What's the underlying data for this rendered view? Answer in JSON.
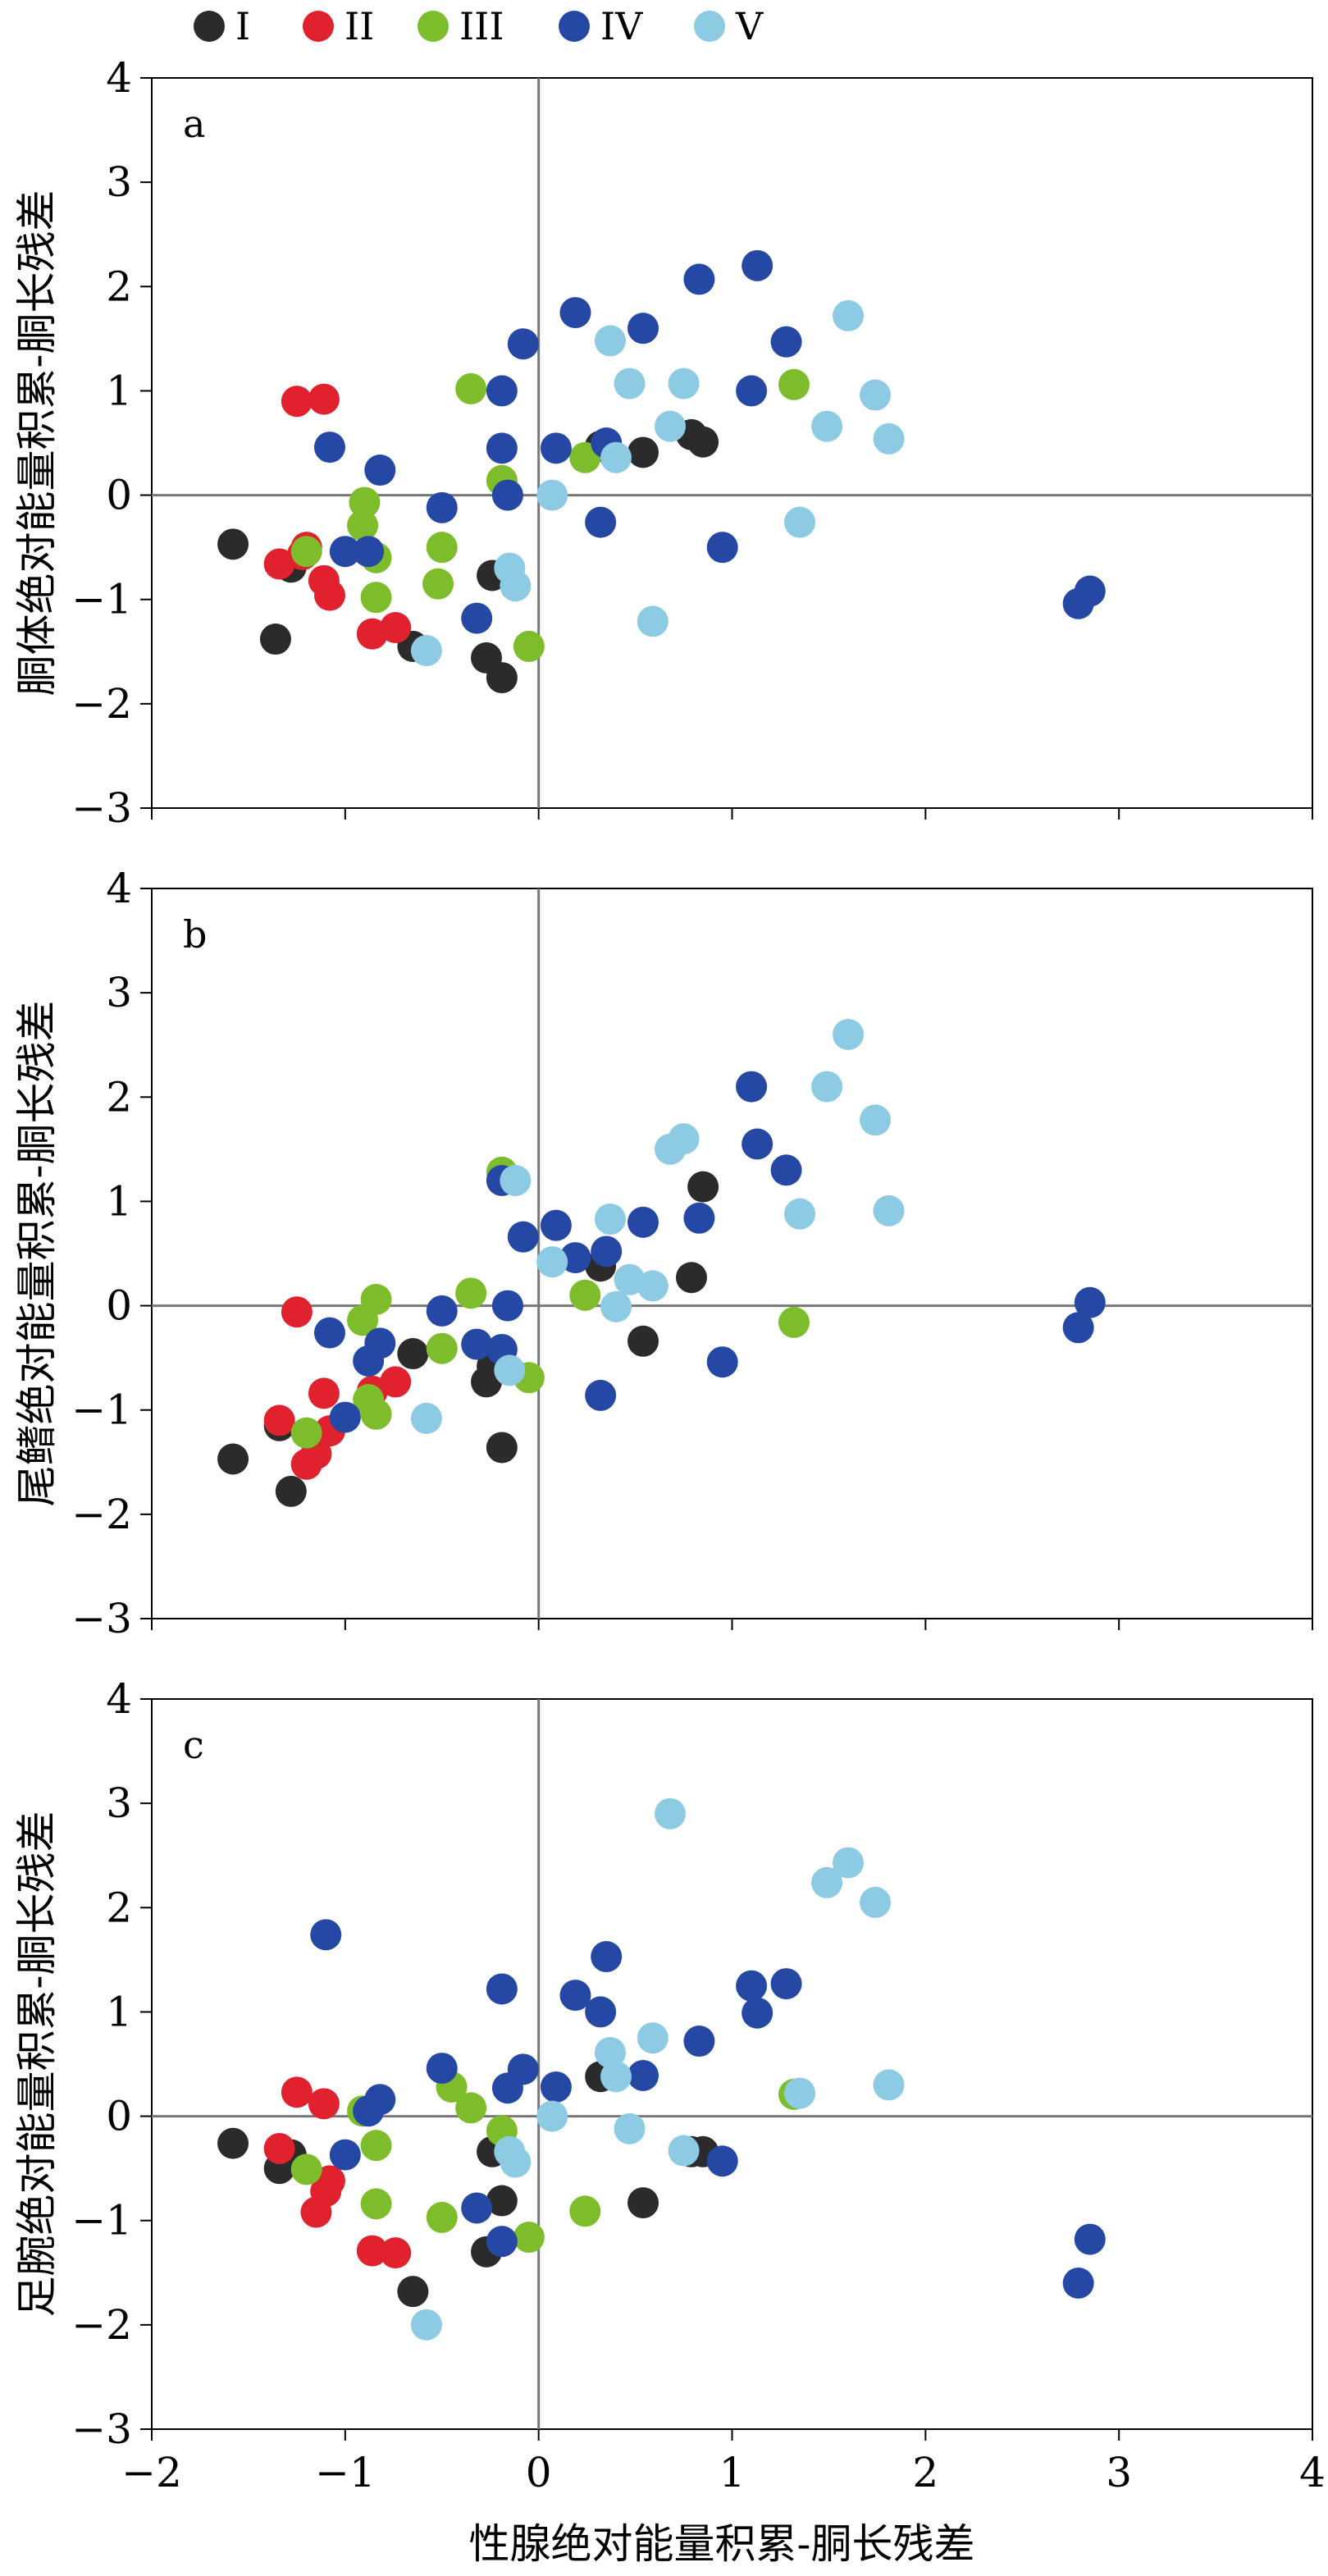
{
  "legend": [
    {
      "label": "I",
      "color": "#2b2b2b"
    },
    {
      "label": "II",
      "color": "#e0212e"
    },
    {
      "label": "III",
      "color": "#7dbd2b"
    },
    {
      "label": "IV",
      "color": "#2548a4"
    },
    {
      "label": "V",
      "color": "#8ccbe3"
    }
  ],
  "x_axis": {
    "label": "性腺绝对能量积累-胴长残差",
    "ticks": [
      "−2",
      "−1",
      "0",
      "1",
      "2",
      "3",
      "4"
    ]
  },
  "y_ticks": [
    "4",
    "3",
    "2",
    "1",
    "0",
    "−1",
    "−2",
    "−3"
  ],
  "chart_data": [
    {
      "type": "scatter",
      "panel_label": "a",
      "ylabel": "胴体绝对能量积累-胴长残差",
      "xlim": [
        -2,
        4
      ],
      "ylim": [
        -3,
        4
      ],
      "grid": false,
      "legend_position": "top",
      "series": [
        {
          "name": "I",
          "color": "#2b2b2b",
          "points": [
            [
              -1.58,
              -0.47
            ],
            [
              -1.36,
              -1.38
            ],
            [
              -1.28,
              -0.69
            ],
            [
              -0.65,
              -1.45
            ],
            [
              -0.27,
              -1.56
            ],
            [
              -0.24,
              -0.77
            ],
            [
              -0.19,
              -1.75
            ],
            [
              0.32,
              0.47
            ],
            [
              0.54,
              0.41
            ],
            [
              0.79,
              0.58
            ],
            [
              0.85,
              0.51
            ]
          ]
        },
        {
          "name": "II",
          "color": "#e0212e",
          "points": [
            [
              -1.25,
              0.9
            ],
            [
              -1.11,
              0.92
            ],
            [
              -1.34,
              -0.66
            ],
            [
              -1.2,
              -0.5
            ],
            [
              -1.22,
              -0.57
            ],
            [
              -1.11,
              -0.82
            ],
            [
              -1.08,
              -0.96
            ],
            [
              -0.86,
              -1.33
            ],
            [
              -0.74,
              -1.27
            ]
          ]
        },
        {
          "name": "III",
          "color": "#7dbd2b",
          "points": [
            [
              -1.2,
              -0.54
            ],
            [
              -0.9,
              -0.07
            ],
            [
              -0.91,
              -0.29
            ],
            [
              -0.84,
              -0.6
            ],
            [
              -0.84,
              -0.98
            ],
            [
              -0.5,
              -0.5
            ],
            [
              -0.52,
              -0.85
            ],
            [
              -0.35,
              1.02
            ],
            [
              -0.19,
              0.14
            ],
            [
              -0.05,
              -1.45
            ],
            [
              0.24,
              0.36
            ],
            [
              1.32,
              1.06
            ]
          ]
        },
        {
          "name": "IV",
          "color": "#2548a4",
          "points": [
            [
              -1.08,
              0.46
            ],
            [
              -0.82,
              0.24
            ],
            [
              -1.0,
              -0.54
            ],
            [
              -0.88,
              -0.54
            ],
            [
              -0.5,
              -0.12
            ],
            [
              -0.32,
              -1.18
            ],
            [
              -0.19,
              1.0
            ],
            [
              -0.19,
              0.45
            ],
            [
              -0.16,
              0.0
            ],
            [
              -0.08,
              1.45
            ],
            [
              0.09,
              0.45
            ],
            [
              0.19,
              1.75
            ],
            [
              0.32,
              -0.26
            ],
            [
              0.35,
              0.5
            ],
            [
              0.54,
              1.6
            ],
            [
              0.83,
              2.07
            ],
            [
              0.95,
              -0.5
            ],
            [
              1.1,
              1.0
            ],
            [
              1.13,
              2.2
            ],
            [
              1.28,
              1.47
            ],
            [
              2.79,
              -1.04
            ],
            [
              2.85,
              -0.92
            ]
          ]
        },
        {
          "name": "V",
          "color": "#8ccbe3",
          "points": [
            [
              -0.58,
              -1.49
            ],
            [
              -0.15,
              -0.7
            ],
            [
              -0.12,
              -0.87
            ],
            [
              0.07,
              0.0
            ],
            [
              0.37,
              1.48
            ],
            [
              0.4,
              0.36
            ],
            [
              0.47,
              1.07
            ],
            [
              0.59,
              -1.21
            ],
            [
              0.68,
              0.66
            ],
            [
              0.75,
              1.07
            ],
            [
              1.35,
              -0.26
            ],
            [
              1.49,
              0.66
            ],
            [
              1.6,
              1.72
            ],
            [
              1.74,
              0.96
            ],
            [
              1.81,
              0.54
            ]
          ]
        }
      ]
    },
    {
      "type": "scatter",
      "panel_label": "b",
      "ylabel": "尾鳍绝对能量积累-胴长残差",
      "xlim": [
        -2,
        4
      ],
      "ylim": [
        -3,
        4
      ],
      "grid": false,
      "series": [
        {
          "name": "I",
          "color": "#2b2b2b",
          "points": [
            [
              -1.58,
              -1.47
            ],
            [
              -1.34,
              -1.15
            ],
            [
              -1.28,
              -1.78
            ],
            [
              -0.65,
              -0.46
            ],
            [
              -0.27,
              -0.73
            ],
            [
              -0.24,
              -0.58
            ],
            [
              -0.19,
              -1.36
            ],
            [
              0.32,
              0.38
            ],
            [
              0.54,
              -0.34
            ],
            [
              0.79,
              0.27
            ],
            [
              0.85,
              1.14
            ]
          ]
        },
        {
          "name": "II",
          "color": "#e0212e",
          "points": [
            [
              -1.25,
              -0.06
            ],
            [
              -1.34,
              -1.1
            ],
            [
              -1.2,
              -1.52
            ],
            [
              -1.15,
              -1.42
            ],
            [
              -1.11,
              -0.84
            ],
            [
              -1.08,
              -1.2
            ],
            [
              -0.86,
              -0.82
            ],
            [
              -0.74,
              -0.73
            ]
          ]
        },
        {
          "name": "III",
          "color": "#7dbd2b",
          "points": [
            [
              -1.2,
              -1.22
            ],
            [
              -0.91,
              -0.14
            ],
            [
              -0.84,
              0.06
            ],
            [
              -0.84,
              -1.04
            ],
            [
              -0.88,
              -0.9
            ],
            [
              -0.5,
              -0.41
            ],
            [
              -0.35,
              0.12
            ],
            [
              -0.19,
              1.28
            ],
            [
              -0.05,
              -0.69
            ],
            [
              0.24,
              0.1
            ],
            [
              1.32,
              -0.16
            ]
          ]
        },
        {
          "name": "IV",
          "color": "#2548a4",
          "points": [
            [
              -1.08,
              -0.26
            ],
            [
              -0.82,
              -0.36
            ],
            [
              -1.0,
              -1.07
            ],
            [
              -0.88,
              -0.53
            ],
            [
              -0.5,
              -0.05
            ],
            [
              -0.32,
              -0.37
            ],
            [
              -0.19,
              -0.42
            ],
            [
              -0.19,
              1.2
            ],
            [
              -0.16,
              0.0
            ],
            [
              -0.08,
              0.66
            ],
            [
              0.09,
              0.77
            ],
            [
              0.19,
              0.46
            ],
            [
              0.32,
              -0.86
            ],
            [
              0.35,
              0.52
            ],
            [
              0.54,
              0.8
            ],
            [
              0.83,
              0.84
            ],
            [
              0.95,
              -0.54
            ],
            [
              1.1,
              2.1
            ],
            [
              1.13,
              1.55
            ],
            [
              1.28,
              1.3
            ],
            [
              2.79,
              -0.21
            ],
            [
              2.85,
              0.03
            ]
          ]
        },
        {
          "name": "V",
          "color": "#8ccbe3",
          "points": [
            [
              -0.58,
              -1.08
            ],
            [
              -0.15,
              -0.62
            ],
            [
              -0.12,
              1.2
            ],
            [
              0.07,
              0.42
            ],
            [
              0.37,
              0.83
            ],
            [
              0.4,
              -0.01
            ],
            [
              0.47,
              0.25
            ],
            [
              0.59,
              0.19
            ],
            [
              0.68,
              1.5
            ],
            [
              0.75,
              1.6
            ],
            [
              1.35,
              0.88
            ],
            [
              1.49,
              2.1
            ],
            [
              1.6,
              2.6
            ],
            [
              1.74,
              1.78
            ],
            [
              1.81,
              0.91
            ]
          ]
        }
      ]
    },
    {
      "type": "scatter",
      "panel_label": "c",
      "ylabel": "足腕绝对能量积累-胴长残差",
      "xlim": [
        -2,
        4
      ],
      "ylim": [
        -3,
        4
      ],
      "grid": false,
      "series": [
        {
          "name": "I",
          "color": "#2b2b2b",
          "points": [
            [
              -1.58,
              -0.26
            ],
            [
              -1.34,
              -0.5
            ],
            [
              -1.28,
              -0.37
            ],
            [
              -0.65,
              -1.68
            ],
            [
              -0.27,
              -1.3
            ],
            [
              -0.24,
              -0.34
            ],
            [
              -0.19,
              -0.81
            ],
            [
              0.32,
              0.38
            ],
            [
              0.54,
              -0.83
            ],
            [
              0.79,
              -0.34
            ],
            [
              0.85,
              -0.34
            ]
          ]
        },
        {
          "name": "II",
          "color": "#e0212e",
          "points": [
            [
              -1.25,
              0.23
            ],
            [
              -1.11,
              0.12
            ],
            [
              -1.34,
              -0.31
            ],
            [
              -1.15,
              -0.92
            ],
            [
              -1.1,
              -0.72
            ],
            [
              -1.08,
              -0.62
            ],
            [
              -0.86,
              -1.29
            ],
            [
              -0.74,
              -1.31
            ]
          ]
        },
        {
          "name": "III",
          "color": "#7dbd2b",
          "points": [
            [
              -1.2,
              -0.51
            ],
            [
              -0.91,
              0.05
            ],
            [
              -0.84,
              -0.28
            ],
            [
              -0.84,
              -0.84
            ],
            [
              -0.5,
              -0.97
            ],
            [
              -0.45,
              0.28
            ],
            [
              -0.35,
              0.08
            ],
            [
              -0.19,
              -0.14
            ],
            [
              -0.05,
              -1.16
            ],
            [
              0.24,
              -0.91
            ],
            [
              1.32,
              0.21
            ]
          ]
        },
        {
          "name": "IV",
          "color": "#2548a4",
          "points": [
            [
              -1.1,
              1.74
            ],
            [
              -0.82,
              0.16
            ],
            [
              -1.0,
              -0.37
            ],
            [
              -0.88,
              0.05
            ],
            [
              -0.5,
              0.46
            ],
            [
              -0.32,
              -0.88
            ],
            [
              -0.19,
              1.22
            ],
            [
              -0.19,
              -1.2
            ],
            [
              -0.16,
              0.27
            ],
            [
              -0.08,
              0.45
            ],
            [
              0.09,
              0.28
            ],
            [
              0.19,
              1.16
            ],
            [
              0.32,
              1.0
            ],
            [
              0.35,
              1.53
            ],
            [
              0.54,
              0.39
            ],
            [
              0.83,
              0.72
            ],
            [
              0.95,
              -0.43
            ],
            [
              1.1,
              1.25
            ],
            [
              1.13,
              0.99
            ],
            [
              1.28,
              1.27
            ],
            [
              2.79,
              -1.6
            ],
            [
              2.85,
              -1.18
            ]
          ]
        },
        {
          "name": "V",
          "color": "#8ccbe3",
          "points": [
            [
              -0.58,
              -2.0
            ],
            [
              -0.15,
              -0.34
            ],
            [
              -0.12,
              -0.44
            ],
            [
              0.07,
              0.0
            ],
            [
              0.37,
              0.61
            ],
            [
              0.4,
              0.38
            ],
            [
              0.47,
              -0.12
            ],
            [
              0.59,
              0.75
            ],
            [
              0.68,
              2.9
            ],
            [
              0.75,
              -0.33
            ],
            [
              1.35,
              0.22
            ],
            [
              1.49,
              2.24
            ],
            [
              1.6,
              2.43
            ],
            [
              1.74,
              2.05
            ],
            [
              1.81,
              0.3
            ]
          ]
        }
      ]
    }
  ]
}
